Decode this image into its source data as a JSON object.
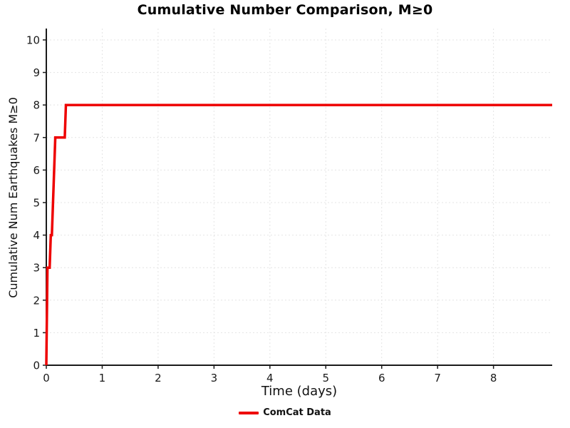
{
  "chart_data": {
    "type": "line",
    "title": "Cumulative Number Comparison, M≥0",
    "xlabel": "Time (days)",
    "ylabel": "Cumulative Num Earthquakes M≥0",
    "xlim": [
      0,
      9.05
    ],
    "ylim": [
      0,
      10.35
    ],
    "xticks": [
      0,
      1,
      2,
      3,
      4,
      5,
      6,
      7,
      8
    ],
    "yticks": [
      0,
      1,
      2,
      3,
      4,
      5,
      6,
      7,
      8,
      9,
      10
    ],
    "grid": true,
    "legend_position": "bottom-center",
    "series": [
      {
        "name": "ComCat Data",
        "color": "#ee0000",
        "line_width": 3.5,
        "points": [
          [
            0,
            0
          ],
          [
            0.02,
            3
          ],
          [
            0.06,
            3
          ],
          [
            0.08,
            4
          ],
          [
            0.1,
            4
          ],
          [
            0.12,
            5
          ],
          [
            0.16,
            7
          ],
          [
            0.33,
            7
          ],
          [
            0.35,
            8
          ],
          [
            9.05,
            8
          ]
        ]
      }
    ],
    "style": {
      "axis_color": "#1a1a1a",
      "grid_color": "#e4e4e4",
      "tick_label_color": "#1a1a1a"
    }
  }
}
